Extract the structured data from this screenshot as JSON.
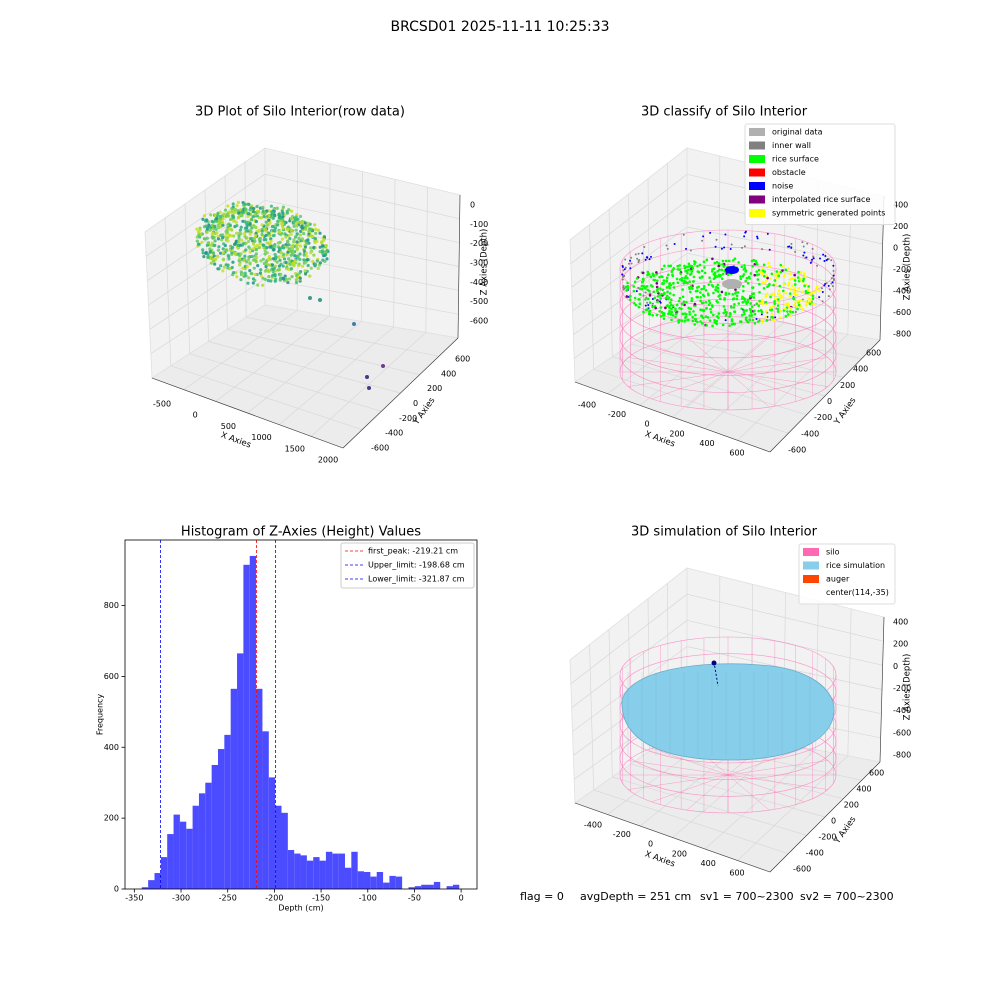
{
  "title": "BRCSD01 2025-11-11 10:25:33",
  "chart_data": [
    {
      "type": "scatter3d",
      "title": "3D Plot of Silo Interior(row data)",
      "xlabel": "X Axies",
      "ylabel": "Y Axies",
      "zlabel": "Z Axies (Depth)",
      "xticks": [
        -500,
        0,
        500,
        1000,
        1500,
        2000
      ],
      "yticks": [
        -600,
        -400,
        -200,
        0,
        200,
        400,
        600
      ],
      "zticks": [
        0,
        -100,
        -200,
        -300,
        -400,
        -500,
        -600
      ]
    },
    {
      "type": "scatter3d",
      "title": "3D classify of Silo Interior",
      "xlabel": "X Axies",
      "ylabel": "Y Axies",
      "zlabel": "Z Axies (Depth)",
      "xticks": [
        -400,
        -200,
        0,
        200,
        400,
        600
      ],
      "yticks": [
        -600,
        -400,
        -200,
        0,
        200,
        400,
        600
      ],
      "zticks": [
        400,
        200,
        0,
        -200,
        -400,
        -600,
        -800
      ],
      "legend_loc": "upper right",
      "legend": [
        {
          "name": "original data",
          "color": "#b0b0b0"
        },
        {
          "name": "inner wall",
          "color": "#808080"
        },
        {
          "name": "rice surface",
          "color": "#00ff00"
        },
        {
          "name": "obstacle",
          "color": "#ff0000"
        },
        {
          "name": "noise",
          "color": "#0000ff"
        },
        {
          "name": "interpolated rice surface",
          "color": "#800080"
        },
        {
          "name": "symmetric generated points",
          "color": "#ffff00"
        }
      ]
    },
    {
      "type": "histogram",
      "title": "Histogram of Z-Axies (Height) Values",
      "xlabel": "Depth (cm)",
      "ylabel": "Frequency",
      "color": "#4b4bff",
      "bins": [
        -342,
        -335.2,
        -328.4,
        -321.6,
        -314.8,
        -308,
        -301.2,
        -294.4,
        -287.6,
        -280.8,
        -274,
        -267.2,
        -260.4,
        -253.6,
        -246.8,
        -240,
        -233.2,
        -226.4,
        -219.6,
        -212.8,
        -206,
        -199.2,
        -192.4,
        -185.6,
        -178.8,
        -172,
        -165.2,
        -158.4,
        -151.6,
        -144.8,
        -138,
        -131.2,
        -124.4,
        -117.6,
        -110.8,
        -104,
        -97.2,
        -90.4,
        -83.6,
        -76.8,
        -70,
        -63.2,
        -56.4,
        -49.6,
        -42.8,
        -36,
        -29.2,
        -22.4,
        -15.6,
        -8.8,
        -2
      ],
      "counts": [
        5,
        25,
        45,
        90,
        155,
        210,
        190,
        170,
        235,
        270,
        300,
        350,
        395,
        435,
        565,
        665,
        915,
        940,
        565,
        445,
        315,
        235,
        215,
        110,
        100,
        95,
        80,
        90,
        80,
        105,
        100,
        100,
        60,
        105,
        50,
        48,
        35,
        48,
        18,
        37,
        35,
        0,
        5,
        8,
        12,
        12,
        20,
        0,
        8,
        12
      ],
      "xlim": [
        -360,
        17
      ],
      "ylim": [
        0,
        985
      ],
      "xticks": [
        -350,
        -300,
        -250,
        -200,
        -150,
        -100,
        -50,
        0
      ],
      "yticks": [
        0,
        200,
        400,
        600,
        800
      ],
      "legend_loc": "upper right",
      "vlines": [
        {
          "name": "first_peak: -219.21 cm",
          "value": -219.21,
          "color": "#ff0000"
        },
        {
          "name": "Upper_limit: -198.68 cm",
          "value": -198.68,
          "color": "#0000ff"
        },
        {
          "name": "Lower_limit: -321.87 cm",
          "value": -321.87,
          "color": "#0000ff"
        }
      ]
    },
    {
      "type": "surface3d",
      "title": "3D simulation of Silo Interior",
      "xlabel": "X Axies",
      "ylabel": "Y Axies",
      "zlabel": "Z Axies (Depth)",
      "xticks": [
        -400,
        -200,
        0,
        200,
        400,
        600
      ],
      "yticks": [
        -600,
        -400,
        -200,
        0,
        200,
        400,
        600
      ],
      "zticks": [
        400,
        200,
        0,
        -200,
        -400,
        -600,
        -800
      ],
      "legend_loc": "upper right",
      "legend": [
        {
          "name": "silo",
          "color": "#ff69b4"
        },
        {
          "name": "rice simulation",
          "color": "#87ceeb"
        },
        {
          "name": "auger",
          "color": "#ff4500"
        },
        {
          "name": "center(114,-35)"
        }
      ]
    }
  ],
  "footer": [
    "flag = 0",
    "avgDepth = 251 cm",
    "sv1 = 700~2300",
    "sv2 = 700~2300"
  ]
}
